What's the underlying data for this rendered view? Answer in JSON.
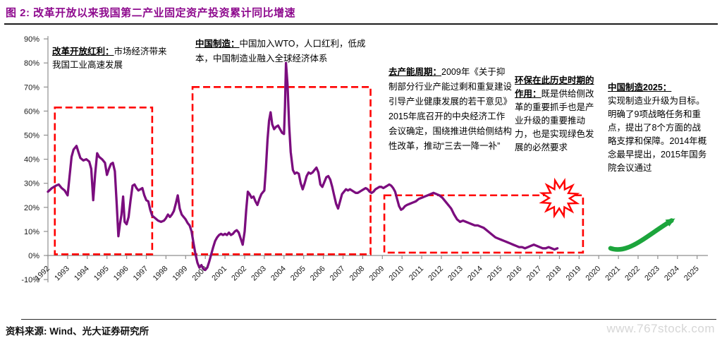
{
  "chart_data": {
    "type": "line",
    "title": "图 2: 改革开放以来我国第二产业固定资产投资累计同比增速",
    "xlabel": "",
    "ylabel": "",
    "xlim": [
      1992,
      2025.6
    ],
    "ylim": [
      -10,
      90
    ],
    "grid": false,
    "legend": "none",
    "y_ticks": [
      90,
      80,
      70,
      60,
      50,
      40,
      30,
      20,
      10,
      0,
      -10
    ],
    "y_tick_suffix": "%",
    "x_ticks": [
      1992,
      1993,
      1994,
      1995,
      1996,
      1997,
      1998,
      1999,
      2000,
      2001,
      2002,
      2003,
      2004,
      2005,
      2006,
      2007,
      2008,
      2009,
      2010,
      2011,
      2012,
      2013,
      2014,
      2015,
      2016,
      2017,
      2018,
      2019,
      2020,
      2021,
      2022,
      2023,
      2024,
      2025
    ],
    "series": [
      {
        "name": "第二产业固定资产投资累计同比增速",
        "color": "#7B0D7E",
        "points": [
          [
            1992.0,
            26.5
          ],
          [
            1992.2,
            28
          ],
          [
            1992.4,
            29
          ],
          [
            1992.55,
            29.5
          ],
          [
            1992.7,
            28
          ],
          [
            1992.85,
            27
          ],
          [
            1993.0,
            25
          ],
          [
            1993.1,
            33
          ],
          [
            1993.2,
            41
          ],
          [
            1993.3,
            44
          ],
          [
            1993.45,
            45.5
          ],
          [
            1993.55,
            43
          ],
          [
            1993.65,
            40.5
          ],
          [
            1993.8,
            39.5
          ],
          [
            1993.95,
            40
          ],
          [
            1994.1,
            39
          ],
          [
            1994.2,
            36
          ],
          [
            1994.3,
            23
          ],
          [
            1994.4,
            34
          ],
          [
            1994.5,
            42.5
          ],
          [
            1994.6,
            41
          ],
          [
            1994.75,
            40
          ],
          [
            1994.9,
            38.5
          ],
          [
            1995.0,
            33.5
          ],
          [
            1995.1,
            36
          ],
          [
            1995.2,
            38
          ],
          [
            1995.3,
            38.5
          ],
          [
            1995.4,
            35
          ],
          [
            1995.5,
            21
          ],
          [
            1995.58,
            8
          ],
          [
            1995.66,
            13
          ],
          [
            1995.74,
            17
          ],
          [
            1995.82,
            24.5
          ],
          [
            1995.9,
            14
          ],
          [
            1996.0,
            13
          ],
          [
            1996.1,
            16
          ],
          [
            1996.2,
            23
          ],
          [
            1996.3,
            29
          ],
          [
            1996.4,
            29.5
          ],
          [
            1996.5,
            28
          ],
          [
            1996.6,
            27
          ],
          [
            1996.7,
            27.5
          ],
          [
            1996.8,
            28
          ],
          [
            1996.9,
            25
          ],
          [
            1997.0,
            23
          ],
          [
            1997.1,
            22.5
          ],
          [
            1997.2,
            19
          ],
          [
            1997.3,
            16.5
          ],
          [
            1997.45,
            15.5
          ],
          [
            1997.6,
            14.5
          ],
          [
            1997.75,
            14
          ],
          [
            1997.9,
            14.5
          ],
          [
            1998.0,
            15.5
          ],
          [
            1998.1,
            17
          ],
          [
            1998.2,
            16
          ],
          [
            1998.3,
            17
          ],
          [
            1998.4,
            18.5
          ],
          [
            1998.5,
            21.5
          ],
          [
            1998.6,
            25
          ],
          [
            1998.7,
            19.5
          ],
          [
            1998.8,
            17
          ],
          [
            1998.9,
            16
          ],
          [
            1999.0,
            15
          ],
          [
            1999.1,
            13.5
          ],
          [
            1999.2,
            12.5
          ],
          [
            1999.3,
            10
          ],
          [
            1999.4,
            5
          ],
          [
            1999.5,
            0.5
          ],
          [
            1999.6,
            -3
          ],
          [
            1999.7,
            -5
          ],
          [
            1999.8,
            -4
          ],
          [
            1999.9,
            -5.5
          ],
          [
            2000.0,
            -6
          ],
          [
            2000.1,
            -5
          ],
          [
            2000.2,
            -2.5
          ],
          [
            2000.3,
            0.5
          ],
          [
            2000.4,
            3.5
          ],
          [
            2000.5,
            6
          ],
          [
            2000.6,
            7.5
          ],
          [
            2000.7,
            8.5
          ],
          [
            2000.8,
            9
          ],
          [
            2000.9,
            8.5
          ],
          [
            2001.0,
            9
          ],
          [
            2001.1,
            8.5
          ],
          [
            2001.2,
            9.5
          ],
          [
            2001.3,
            8.5
          ],
          [
            2001.4,
            9
          ],
          [
            2001.5,
            10
          ],
          [
            2001.6,
            10.5
          ],
          [
            2001.7,
            9.5
          ],
          [
            2001.8,
            7
          ],
          [
            2001.9,
            4.5
          ],
          [
            2002.0,
            10
          ],
          [
            2002.08,
            19
          ],
          [
            2002.16,
            26.5
          ],
          [
            2002.25,
            25.5
          ],
          [
            2002.35,
            24
          ],
          [
            2002.45,
            24.5
          ],
          [
            2002.55,
            22.5
          ],
          [
            2002.65,
            21
          ],
          [
            2002.75,
            23.5
          ],
          [
            2002.85,
            25.5
          ],
          [
            2002.95,
            26.5
          ],
          [
            2003.0,
            27
          ],
          [
            2003.08,
            36
          ],
          [
            2003.16,
            48
          ],
          [
            2003.24,
            56
          ],
          [
            2003.32,
            59.5
          ],
          [
            2003.4,
            54.5
          ],
          [
            2003.5,
            52.5
          ],
          [
            2003.6,
            53.5
          ],
          [
            2003.7,
            54
          ],
          [
            2003.8,
            52.5
          ],
          [
            2003.9,
            51
          ],
          [
            2004.0,
            50.5
          ],
          [
            2004.05,
            62
          ],
          [
            2004.1,
            80
          ],
          [
            2004.18,
            71
          ],
          [
            2004.26,
            54
          ],
          [
            2004.34,
            43
          ],
          [
            2004.45,
            35.5
          ],
          [
            2004.55,
            34
          ],
          [
            2004.65,
            34.5
          ],
          [
            2004.75,
            34
          ],
          [
            2004.85,
            30
          ],
          [
            2004.95,
            27.5
          ],
          [
            2005.05,
            30
          ],
          [
            2005.15,
            33
          ],
          [
            2005.25,
            34.5
          ],
          [
            2005.35,
            34
          ],
          [
            2005.45,
            34.5
          ],
          [
            2005.55,
            35.5
          ],
          [
            2005.65,
            36.5
          ],
          [
            2005.75,
            34.5
          ],
          [
            2005.85,
            29.5
          ],
          [
            2005.95,
            28.5
          ],
          [
            2006.05,
            30.5
          ],
          [
            2006.15,
            32.5
          ],
          [
            2006.25,
            33
          ],
          [
            2006.35,
            31.5
          ],
          [
            2006.45,
            28.5
          ],
          [
            2006.55,
            25
          ],
          [
            2006.65,
            21.5
          ],
          [
            2006.75,
            19.5
          ],
          [
            2006.85,
            22.5
          ],
          [
            2006.95,
            25.5
          ],
          [
            2007.05,
            26.5
          ],
          [
            2007.15,
            27.5
          ],
          [
            2007.25,
            27
          ],
          [
            2007.35,
            27.5
          ],
          [
            2007.45,
            27
          ],
          [
            2007.55,
            26.5
          ],
          [
            2007.65,
            26
          ],
          [
            2007.75,
            26
          ],
          [
            2007.85,
            26.5
          ],
          [
            2007.95,
            27
          ],
          [
            2008.05,
            27.5
          ],
          [
            2008.15,
            28
          ],
          [
            2008.25,
            27.5
          ],
          [
            2008.35,
            26.5
          ],
          [
            2008.45,
            26
          ],
          [
            2008.55,
            26.5
          ],
          [
            2008.65,
            27.5
          ],
          [
            2008.75,
            28
          ],
          [
            2008.85,
            28.5
          ],
          [
            2008.95,
            28.5
          ],
          [
            2009.05,
            28
          ],
          [
            2009.15,
            28.5
          ],
          [
            2009.25,
            29
          ],
          [
            2009.35,
            29.5
          ],
          [
            2009.45,
            29
          ],
          [
            2009.55,
            28
          ],
          [
            2009.65,
            26.5
          ],
          [
            2009.75,
            23.5
          ],
          [
            2009.85,
            20.5
          ],
          [
            2009.95,
            19
          ],
          [
            2010.05,
            19.5
          ],
          [
            2010.15,
            20.5
          ],
          [
            2010.25,
            21
          ],
          [
            2010.4,
            21.5
          ],
          [
            2010.55,
            22
          ],
          [
            2010.7,
            22.5
          ],
          [
            2010.85,
            23.5
          ],
          [
            2011.0,
            24
          ],
          [
            2011.15,
            24.5
          ],
          [
            2011.3,
            25
          ],
          [
            2011.45,
            25.5
          ],
          [
            2011.6,
            26
          ],
          [
            2011.75,
            25.5
          ],
          [
            2011.9,
            25
          ],
          [
            2012.05,
            24
          ],
          [
            2012.2,
            22.5
          ],
          [
            2012.35,
            21
          ],
          [
            2012.5,
            19.5
          ],
          [
            2012.65,
            17
          ],
          [
            2012.8,
            15
          ],
          [
            2012.95,
            14
          ],
          [
            2013.1,
            14.5
          ],
          [
            2013.25,
            14
          ],
          [
            2013.4,
            13.5
          ],
          [
            2013.55,
            13
          ],
          [
            2013.7,
            12.5
          ],
          [
            2013.85,
            12.5
          ],
          [
            2014.0,
            12
          ],
          [
            2014.15,
            11.5
          ],
          [
            2014.3,
            10.5
          ],
          [
            2014.45,
            9.5
          ],
          [
            2014.6,
            8.5
          ],
          [
            2014.75,
            7.5
          ],
          [
            2014.9,
            7
          ],
          [
            2015.05,
            6.5
          ],
          [
            2015.2,
            6
          ],
          [
            2015.35,
            5.5
          ],
          [
            2015.5,
            5
          ],
          [
            2015.65,
            4.5
          ],
          [
            2015.8,
            4
          ],
          [
            2015.95,
            3.5
          ],
          [
            2016.1,
            3.5
          ],
          [
            2016.25,
            3
          ],
          [
            2016.4,
            3.5
          ],
          [
            2016.55,
            4
          ],
          [
            2016.7,
            4.5
          ],
          [
            2016.85,
            4
          ],
          [
            2017.0,
            3.5
          ],
          [
            2017.15,
            3
          ],
          [
            2017.3,
            3
          ],
          [
            2017.45,
            3.5
          ],
          [
            2017.6,
            3
          ],
          [
            2017.75,
            2.5
          ],
          [
            2017.9,
            3
          ]
        ]
      }
    ],
    "highlight_boxes": [
      {
        "x0": 1992.35,
        "x1": 1997.3,
        "y0": 0.5,
        "y1": 61.5,
        "color": "#FF0000"
      },
      {
        "x0": 1999.35,
        "x1": 2008.4,
        "y0": 0.5,
        "y1": 70.0,
        "color": "#FF0000"
      },
      {
        "x0": 2009.1,
        "x1": 2019.2,
        "y0": 1.2,
        "y1": 25.0,
        "color": "#FF0000"
      }
    ],
    "starburst": {
      "x": 2018.0,
      "y": 23.8,
      "color": "#FF0000"
    },
    "trend_arrow": {
      "x0": 2020.6,
      "y0": 3,
      "x1": 2023.7,
      "y1": 14.5,
      "color": "#1CA53C"
    }
  },
  "annotations": {
    "notes": [
      {
        "heading": "改革开放红利：",
        "body": "市场经济带来我国工业高速发展"
      },
      {
        "heading": "中国制造：",
        "body": "中国加入WTO，人口红利，低成本，中国制造业融入全球经济体系"
      },
      {
        "heading": "去产能周期：",
        "body": "2009年《关于抑制部分行业产能过剩和重复建设引导产业健康发展的若干意见》",
        "body2": "2015年底召开的中央经济工作会议确定，围绕推进供给侧结构性改革，推动“三去一降一补”"
      },
      {
        "heading": "环保在此历史时期的作用：",
        "body": "既是供给侧改革的重要抓手也是产业升级的重要推动力，也是实现绿色发展的必然要求"
      },
      {
        "heading": "中国制造2025：",
        "body": "实现制造业升级为目标。明确了9项战略任务和重点，提出了8个方面的战略支撑和保障。2014年概念最早提出，2015年国务院会议通过"
      }
    ]
  },
  "footer": {
    "source": "资料来源: Wind、光大证券研究所",
    "watermark": "www.767stock.com"
  }
}
